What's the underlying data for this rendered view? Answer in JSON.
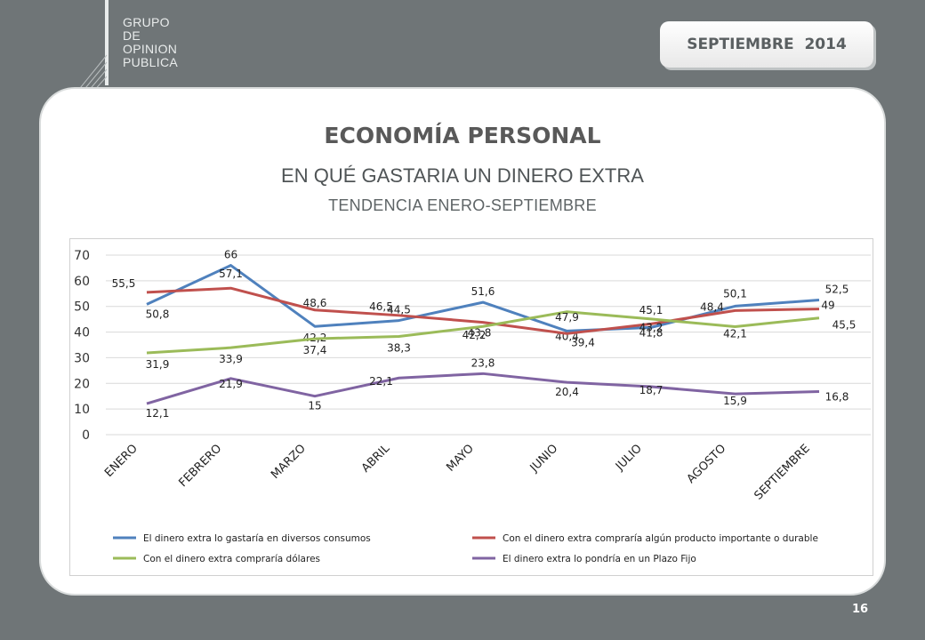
{
  "header": {
    "logo_lines": [
      "GRUPO",
      "DE",
      "OPINION",
      "PUBLICA"
    ],
    "date": "SEPTIEMBRE  2014"
  },
  "slide": {
    "title": "ECONOMÍA PERSONAL",
    "subtitle": "EN QUÉ GASTARIA UN DINERO EXTRA",
    "subtitle2": "TENDENCIA ENERO-SEPTIEMBRE",
    "page_number": "16"
  },
  "colors": {
    "background": "#6f7577",
    "blue": "#4f81bd",
    "red": "#c0504d",
    "green": "#9bbb59",
    "purple": "#8064a2"
  },
  "chart_data": {
    "type": "line",
    "categories": [
      "ENERO",
      "FEBRERO",
      "MARZO",
      "ABRIL",
      "MAYO",
      "JUNIO",
      "JULIO",
      "AGOSTO",
      "SEPTIEMBRE"
    ],
    "ylim": [
      0,
      70
    ],
    "yticks": [
      "0",
      "10",
      "20",
      "30",
      "40",
      "50",
      "60",
      "70"
    ],
    "grid": true,
    "legend_position": "bottom",
    "series": [
      {
        "name": "El dinero extra lo gastaría en diversos consumos",
        "color": "#4f81bd",
        "values": [
          50.8,
          66,
          42.2,
          44.5,
          51.6,
          40.4,
          41.8,
          50.1,
          52.5
        ],
        "labels": [
          "50,8",
          "66",
          "42,2",
          "44,5",
          "51,6",
          "40,4",
          "41,8",
          "50,1",
          "52,5"
        ]
      },
      {
        "name": "Con el dinero extra compraría algún producto importante o durable",
        "color": "#c0504d",
        "values": [
          55.5,
          57.1,
          48.6,
          46.5,
          43.8,
          39.4,
          43.2,
          48.4,
          49
        ],
        "labels": [
          "55,5",
          "57,1",
          "48,6",
          "46,5",
          "43,8",
          "39,4",
          "43,2",
          "48,4",
          "49"
        ]
      },
      {
        "name": "Con el dinero extra compraría dólares",
        "color": "#9bbb59",
        "values": [
          31.9,
          33.9,
          37.4,
          38.3,
          42.2,
          47.9,
          45.1,
          42.1,
          45.5
        ],
        "labels": [
          "31,9",
          "33,9",
          "37,4",
          "38,3",
          "42,2",
          "47,9",
          "45,1",
          "42,1",
          "45,5"
        ]
      },
      {
        "name": "El dinero extra lo pondría en un Plazo Fijo",
        "color": "#8064a2",
        "values": [
          12.1,
          21.9,
          15,
          22.1,
          23.8,
          20.4,
          18.7,
          15.9,
          16.8
        ],
        "labels": [
          "12,1",
          "21,9",
          "15",
          "22,1",
          "23,8",
          "20,4",
          "18,7",
          "15,9",
          "16,8"
        ]
      }
    ]
  }
}
